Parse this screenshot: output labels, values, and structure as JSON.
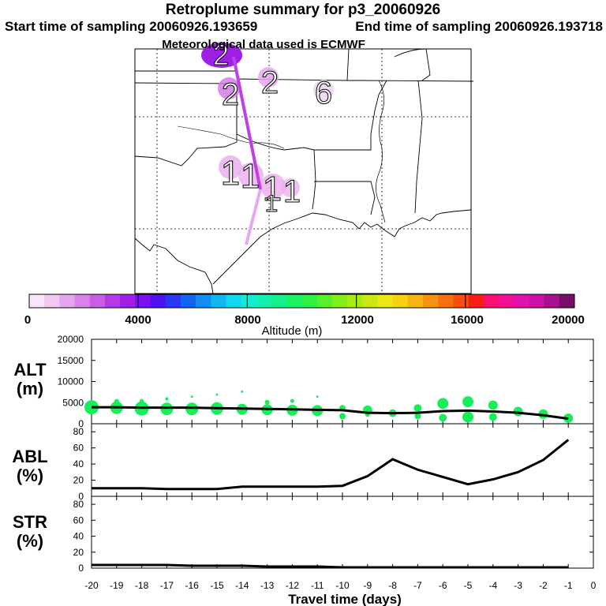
{
  "header": {
    "title": "Retroplume summary for p3_20060926",
    "start_label": "Start time of sampling 20060926.193659",
    "end_label": "End time of sampling 20060926.193718",
    "met_label": "Meteorological data used is ECMWF"
  },
  "map": {
    "plume_numbers": [
      "2",
      "2",
      "6",
      "1",
      "1",
      "1",
      "1",
      "1"
    ],
    "colors": {
      "border": "#000000",
      "plume_light": "#ecb0ee",
      "plume_mid": "#d47ce6",
      "plume_dark": "#9f1fe6",
      "track": "#c040e8",
      "track_light": "#e6a8f0"
    }
  },
  "colorbar": {
    "ticks": [
      "0",
      "4000",
      "8000",
      "12000",
      "16000",
      "20000"
    ],
    "label": "Altitude (m)",
    "colors": [
      "#f8e6f8",
      "#f0c8f0",
      "#e6a6ee",
      "#d883ea",
      "#c85ee8",
      "#b43ae8",
      "#a01ee8",
      "#7a10ee",
      "#4d12f2",
      "#2838f4",
      "#1464f4",
      "#108ef4",
      "#10b6f4",
      "#10d8f0",
      "#12ecd4",
      "#14f0b0",
      "#16f08c",
      "#1cf068",
      "#30f046",
      "#58f02a",
      "#84f01a",
      "#a8ec14",
      "#cce814",
      "#ece614",
      "#f6d012",
      "#f8b412",
      "#f89210",
      "#f8700e",
      "#f84e0e",
      "#f81e16",
      "#f8106e",
      "#f01096",
      "#e410ae",
      "#cc10a8",
      "#a8108e",
      "#741068"
    ]
  },
  "chart_data": [
    {
      "type": "scatter",
      "title": "ALT (m)",
      "ylabel_line1": "ALT",
      "ylabel_line2": "(m)",
      "ylim": [
        0,
        20000
      ],
      "yticks": [
        "20000",
        "15000",
        "10000",
        "5000",
        "0"
      ],
      "xlim": [
        -20,
        0
      ],
      "line_x": [
        -20,
        -19,
        -18,
        -17,
        -16,
        -15,
        -14,
        -13,
        -12,
        -11,
        -10,
        -9,
        -8,
        -7,
        -6,
        -5,
        -4,
        -3,
        -2,
        -1
      ],
      "line_y": [
        3900,
        3900,
        3800,
        3800,
        3800,
        3700,
        3600,
        3500,
        3400,
        3300,
        3200,
        2600,
        2500,
        2600,
        3000,
        3100,
        2900,
        2600,
        2000,
        1200
      ],
      "points": [
        {
          "x": -20,
          "y": 3900,
          "s": 9
        },
        {
          "x": -19,
          "y": 3800,
          "s": 8
        },
        {
          "x": -19,
          "y": 5300,
          "s": 3
        },
        {
          "x": -18,
          "y": 3600,
          "s": 9
        },
        {
          "x": -18,
          "y": 5400,
          "s": 2.5
        },
        {
          "x": -17,
          "y": 3500,
          "s": 8
        },
        {
          "x": -17,
          "y": 5900,
          "s": 2
        },
        {
          "x": -16,
          "y": 3500,
          "s": 8
        },
        {
          "x": -16,
          "y": 6400,
          "s": 1.5
        },
        {
          "x": -15,
          "y": 3600,
          "s": 8
        },
        {
          "x": -15,
          "y": 6900,
          "s": 1.5
        },
        {
          "x": -14,
          "y": 3400,
          "s": 7
        },
        {
          "x": -14,
          "y": 7600,
          "s": 1.5
        },
        {
          "x": -13,
          "y": 3300,
          "s": 7
        },
        {
          "x": -13,
          "y": 5100,
          "s": 3
        },
        {
          "x": -12,
          "y": 3200,
          "s": 7
        },
        {
          "x": -12,
          "y": 5400,
          "s": 2.5
        },
        {
          "x": -11,
          "y": 3100,
          "s": 7
        },
        {
          "x": -11,
          "y": 6400,
          "s": 1.5
        },
        {
          "x": -10,
          "y": 3700,
          "s": 4
        },
        {
          "x": -10,
          "y": 1800,
          "s": 4
        },
        {
          "x": -9,
          "y": 3200,
          "s": 6
        },
        {
          "x": -9,
          "y": 2200,
          "s": 3
        },
        {
          "x": -8,
          "y": 2500,
          "s": 5
        },
        {
          "x": -7,
          "y": 3700,
          "s": 5
        },
        {
          "x": -7,
          "y": 1800,
          "s": 4
        },
        {
          "x": -6,
          "y": 4800,
          "s": 7
        },
        {
          "x": -6,
          "y": 1400,
          "s": 5
        },
        {
          "x": -5,
          "y": 5200,
          "s": 7
        },
        {
          "x": -5,
          "y": 1600,
          "s": 7
        },
        {
          "x": -4,
          "y": 4400,
          "s": 6
        },
        {
          "x": -4,
          "y": 1600,
          "s": 5
        },
        {
          "x": -3,
          "y": 2900,
          "s": 6
        },
        {
          "x": -2,
          "y": 2300,
          "s": 6
        },
        {
          "x": -1,
          "y": 1300,
          "s": 6
        }
      ]
    },
    {
      "type": "line",
      "title": "ABL (%)",
      "ylabel_line1": "ABL",
      "ylabel_line2": "(%)",
      "ylim": [
        0,
        90
      ],
      "yticks": [
        "80",
        "60",
        "40",
        "20",
        "0"
      ],
      "xlim": [
        -20,
        0
      ],
      "x": [
        -20,
        -19,
        -18,
        -17,
        -16,
        -15,
        -14,
        -13,
        -12,
        -11,
        -10,
        -9,
        -8,
        -7,
        -6,
        -5,
        -4,
        -3,
        -2,
        -1
      ],
      "y": [
        10,
        10,
        10,
        9,
        9,
        9,
        12,
        12,
        12,
        12,
        13,
        25,
        46,
        33,
        24,
        15,
        21,
        30,
        45,
        70
      ]
    },
    {
      "type": "line",
      "title": "STR (%)",
      "ylabel_line1": "STR",
      "ylabel_line2": "(%)",
      "ylim": [
        0,
        90
      ],
      "yticks": [
        "80",
        "60",
        "40",
        "20",
        "0"
      ],
      "xlim": [
        -20,
        0
      ],
      "x": [
        -20,
        -19,
        -18,
        -17,
        -16,
        -15,
        -14,
        -13,
        -12,
        -11,
        -10,
        -9,
        -8,
        -7,
        -6,
        -5,
        -4,
        -3,
        -2,
        -1
      ],
      "y": [
        4,
        4,
        4,
        4,
        3,
        3,
        3,
        2,
        2,
        2,
        1,
        1,
        1,
        1,
        1,
        1,
        1,
        1,
        1,
        1
      ]
    }
  ],
  "xaxis": {
    "labels": [
      "-20",
      "-19",
      "-18",
      "-17",
      "-16",
      "-15",
      "-14",
      "-13",
      "-12",
      "-11",
      "-10",
      "-9",
      "-8",
      "-7",
      "-6",
      "-5",
      "-4",
      "-3",
      "-2",
      "-1",
      "0"
    ],
    "title": "Travel time (days)"
  },
  "colors": {
    "green": "#18ee58",
    "line": "#000000"
  }
}
